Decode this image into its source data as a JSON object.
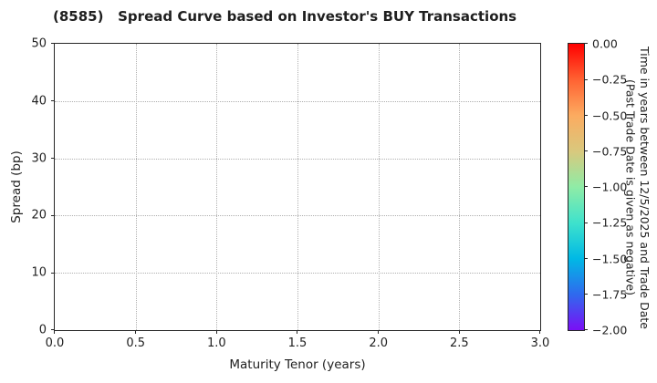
{
  "chart_data": {
    "type": "scatter",
    "title": "(8585)   Spread Curve based on Investor's BUY Transactions",
    "xlabel": "Maturity Tenor (years)",
    "ylabel": "Spread (bp)",
    "xlim": [
      0.0,
      3.0
    ],
    "ylim": [
      0,
      50
    ],
    "grid": true,
    "grid_style": "dotted",
    "series": [],
    "x_ticks": [
      {
        "value": 0.0,
        "label": "0.0"
      },
      {
        "value": 0.5,
        "label": "0.5"
      },
      {
        "value": 1.0,
        "label": "1.0"
      },
      {
        "value": 1.5,
        "label": "1.5"
      },
      {
        "value": 2.0,
        "label": "2.0"
      },
      {
        "value": 2.5,
        "label": "2.5"
      },
      {
        "value": 3.0,
        "label": "3.0"
      }
    ],
    "y_ticks": [
      {
        "value": 0,
        "label": "0"
      },
      {
        "value": 10,
        "label": "10"
      },
      {
        "value": 20,
        "label": "20"
      },
      {
        "value": 30,
        "label": "30"
      },
      {
        "value": 40,
        "label": "40"
      },
      {
        "value": 50,
        "label": "50"
      }
    ],
    "colorbar": {
      "colormap": "rainbow",
      "range": [
        -2.0,
        0.0
      ],
      "label_line1": "Time in years between 12/5/2025 and Trade Date",
      "label_line2": "(Past Trade Date is given as negative)",
      "ticks": [
        {
          "value": 0.0,
          "label": "0.00"
        },
        {
          "value": -0.25,
          "label": "−0.25"
        },
        {
          "value": -0.5,
          "label": "−0.50"
        },
        {
          "value": -0.75,
          "label": "−0.75"
        },
        {
          "value": -1.0,
          "label": "−1.00"
        },
        {
          "value": -1.25,
          "label": "−1.25"
        },
        {
          "value": -1.5,
          "label": "−1.50"
        },
        {
          "value": -1.75,
          "label": "−1.75"
        },
        {
          "value": -2.0,
          "label": "−2.00"
        }
      ],
      "gradient_stops": [
        {
          "pos": 0.0,
          "color": "#ff0000"
        },
        {
          "pos": 0.125,
          "color": "#ff6232"
        },
        {
          "pos": 0.25,
          "color": "#fcab60"
        },
        {
          "pos": 0.375,
          "color": "#d9c87d"
        },
        {
          "pos": 0.5,
          "color": "#8feca6"
        },
        {
          "pos": 0.625,
          "color": "#3fe2cc"
        },
        {
          "pos": 0.75,
          "color": "#00b9e5"
        },
        {
          "pos": 0.875,
          "color": "#2f6aee"
        },
        {
          "pos": 1.0,
          "color": "#7a0ff5"
        }
      ]
    },
    "text_color": "#1f1f1f",
    "grid_color": "#b0b0b0",
    "spine_color": "#262626"
  }
}
